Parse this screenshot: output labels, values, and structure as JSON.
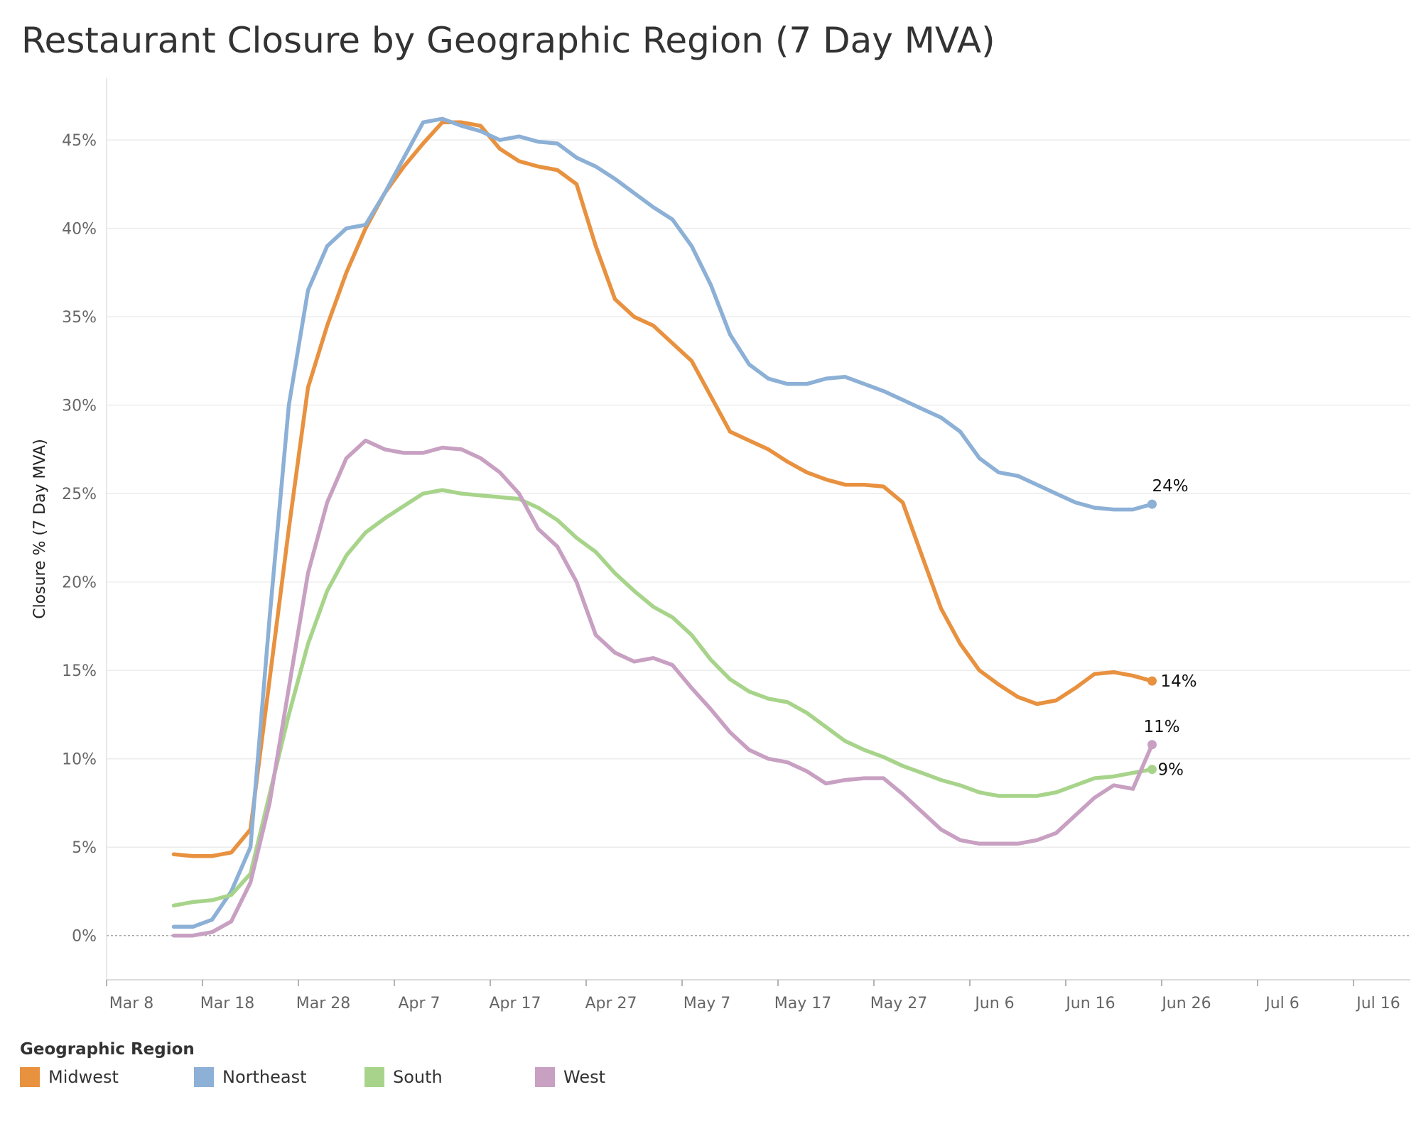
{
  "title": "Restaurant Closure by Geographic  Region (7 Day MVA)",
  "chart_data": {
    "type": "line",
    "title": "Restaurant Closure by Geographic  Region (7 Day MVA)",
    "ylabel": "Closure % (7 Day MVA)",
    "xlabel": "",
    "x_start": "Mar 15",
    "x_step_days": 2,
    "x_ticks": [
      "Mar 8",
      "Mar 18",
      "Mar 28",
      "Apr 7",
      "Apr 17",
      "Apr 27",
      "May 7",
      "May 17",
      "May 27",
      "Jun 6",
      "Jun 16",
      "Jun 26",
      "Jul 6",
      "Jul 16"
    ],
    "y_ticks": [
      "0%",
      "5%",
      "10%",
      "15%",
      "20%",
      "25%",
      "30%",
      "35%",
      "40%",
      "45%"
    ],
    "ylim": [
      -2.5,
      48.5
    ],
    "grid": true,
    "series": [
      {
        "name": "Midwest",
        "color": "#e8913f",
        "end_label": "14%",
        "values": [
          4.6,
          4.5,
          4.5,
          4.7,
          6.0,
          14.5,
          23.0,
          31.0,
          34.5,
          37.5,
          40.0,
          42.0,
          43.5,
          44.8,
          46.0,
          46.0,
          45.8,
          44.5,
          43.8,
          43.5,
          43.3,
          42.5,
          39.0,
          36.0,
          35.0,
          34.5,
          33.5,
          32.5,
          30.5,
          28.5,
          28.0,
          27.5,
          26.8,
          26.2,
          25.8,
          25.5,
          25.5,
          25.4,
          24.5,
          21.5,
          18.5,
          16.5,
          15.0,
          14.2,
          13.5,
          13.1,
          13.3,
          14.0,
          14.8,
          14.9,
          14.7,
          14.4
        ]
      },
      {
        "name": "Northeast",
        "color": "#8cb0d6",
        "end_label": "24%",
        "values": [
          0.5,
          0.5,
          0.9,
          2.5,
          5.0,
          18.0,
          30.0,
          36.5,
          39.0,
          40.0,
          40.2,
          42.0,
          44.0,
          46.0,
          46.2,
          45.8,
          45.5,
          45.0,
          45.2,
          44.9,
          44.8,
          44.0,
          43.5,
          42.8,
          42.0,
          41.2,
          40.5,
          39.0,
          36.8,
          34.0,
          32.3,
          31.5,
          31.2,
          31.2,
          31.5,
          31.6,
          31.2,
          30.8,
          30.3,
          29.8,
          29.3,
          28.5,
          27.0,
          26.2,
          26.0,
          25.5,
          25.0,
          24.5,
          24.2,
          24.1,
          24.1,
          24.4
        ]
      },
      {
        "name": "South",
        "color": "#a7d48a",
        "end_label": "9%",
        "values": [
          1.7,
          1.9,
          2.0,
          2.3,
          3.5,
          8.0,
          12.5,
          16.5,
          19.5,
          21.5,
          22.8,
          23.6,
          24.3,
          25.0,
          25.2,
          25.0,
          24.9,
          24.8,
          24.7,
          24.2,
          23.5,
          22.5,
          21.7,
          20.5,
          19.5,
          18.6,
          18.0,
          17.0,
          15.6,
          14.5,
          13.8,
          13.4,
          13.2,
          12.6,
          11.8,
          11.0,
          10.5,
          10.1,
          9.6,
          9.2,
          8.8,
          8.5,
          8.1,
          7.9,
          7.9,
          7.9,
          8.1,
          8.5,
          8.9,
          9.0,
          9.2,
          9.4
        ]
      },
      {
        "name": "West",
        "color": "#c8a0c2",
        "end_label": "11%",
        "values": [
          0.0,
          0.0,
          0.2,
          0.8,
          3.0,
          7.5,
          14.0,
          20.5,
          24.5,
          27.0,
          28.0,
          27.5,
          27.3,
          27.3,
          27.6,
          27.5,
          27.0,
          26.2,
          25.0,
          23.0,
          22.0,
          20.0,
          17.0,
          16.0,
          15.5,
          15.7,
          15.3,
          14.0,
          12.8,
          11.5,
          10.5,
          10.0,
          9.8,
          9.3,
          8.6,
          8.8,
          8.9,
          8.9,
          8.0,
          7.0,
          6.0,
          5.4,
          5.2,
          5.2,
          5.2,
          5.4,
          5.8,
          6.8,
          7.8,
          8.5,
          8.3,
          10.8
        ]
      }
    ],
    "legend": {
      "title": "Geographic Region",
      "placement": "bottom-left",
      "items": [
        "Midwest",
        "Northeast",
        "South",
        "West"
      ]
    }
  }
}
